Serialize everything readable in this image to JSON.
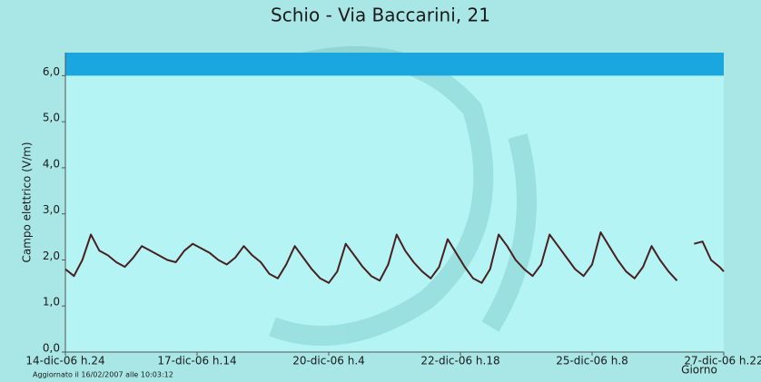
{
  "chart_data": {
    "type": "line",
    "title": "Schio - Via Baccarini, 21",
    "y_label": "Campo elettrico (V/m)",
    "x_label": "Giorno",
    "footnote": "Aggiornato il 16/02/2007 alle 10:03:12",
    "xlim": [
      0,
      310
    ],
    "xticks": [
      {
        "value": 0,
        "label": "14-dic-06 h.24"
      },
      {
        "value": 62,
        "label": "17-dic-06 h.14"
      },
      {
        "value": 124,
        "label": "20-dic-06 h.4"
      },
      {
        "value": 186,
        "label": "22-dic-06 h.18"
      },
      {
        "value": 248,
        "label": "25-dic-06 h.8"
      },
      {
        "value": 310,
        "label": "27-dic-06 h.22"
      }
    ],
    "ylim": [
      0,
      6.5
    ],
    "yticks": [
      {
        "value": 0,
        "label": "0,0"
      },
      {
        "value": 1,
        "label": "1,0"
      },
      {
        "value": 2,
        "label": "2,0"
      },
      {
        "value": 3,
        "label": "3,0"
      },
      {
        "value": 4,
        "label": "4,0"
      },
      {
        "value": 5,
        "label": "5,0"
      },
      {
        "value": 6,
        "label": "6,0"
      }
    ],
    "band": {
      "from": 6,
      "to": 6.5,
      "color": "#1aa6de"
    },
    "x": [
      0,
      4,
      8,
      12,
      16,
      20,
      24,
      28,
      32,
      36,
      40,
      44,
      48,
      52,
      56,
      60,
      64,
      68,
      72,
      76,
      80,
      84,
      88,
      92,
      96,
      100,
      104,
      108,
      112,
      116,
      120,
      124,
      128,
      132,
      136,
      140,
      144,
      148,
      152,
      156,
      160,
      164,
      168,
      172,
      176,
      180,
      184,
      188,
      192,
      196,
      200,
      204,
      208,
      212,
      216,
      220,
      224,
      228,
      232,
      236,
      240,
      244,
      248,
      252,
      256,
      260,
      264,
      268,
      272,
      276,
      280,
      284,
      288,
      292,
      296,
      300,
      304,
      308,
      310
    ],
    "series": [
      {
        "color": "#4a1f1f",
        "values": [
          1.8,
          1.65,
          2.0,
          2.55,
          2.2,
          2.1,
          1.95,
          1.85,
          2.05,
          2.3,
          2.2,
          2.1,
          2.0,
          1.95,
          2.2,
          2.35,
          2.25,
          2.15,
          2.0,
          1.9,
          2.05,
          2.3,
          2.1,
          1.95,
          1.7,
          1.6,
          1.9,
          2.3,
          2.05,
          1.8,
          1.6,
          1.5,
          1.75,
          2.35,
          2.1,
          1.85,
          1.65,
          1.55,
          1.9,
          2.55,
          2.2,
          1.95,
          1.75,
          1.6,
          1.85,
          2.45,
          2.15,
          1.85,
          1.6,
          1.5,
          1.8,
          2.55,
          2.3,
          2.0,
          1.8,
          1.65,
          1.9,
          2.55,
          2.3,
          2.05,
          1.8,
          1.65,
          1.9,
          2.6,
          2.3,
          2.0,
          1.75,
          1.6,
          1.85,
          2.3,
          2.0,
          1.75,
          1.55,
          null,
          2.35,
          2.4,
          2.0,
          1.85,
          1.75
        ]
      }
    ]
  }
}
